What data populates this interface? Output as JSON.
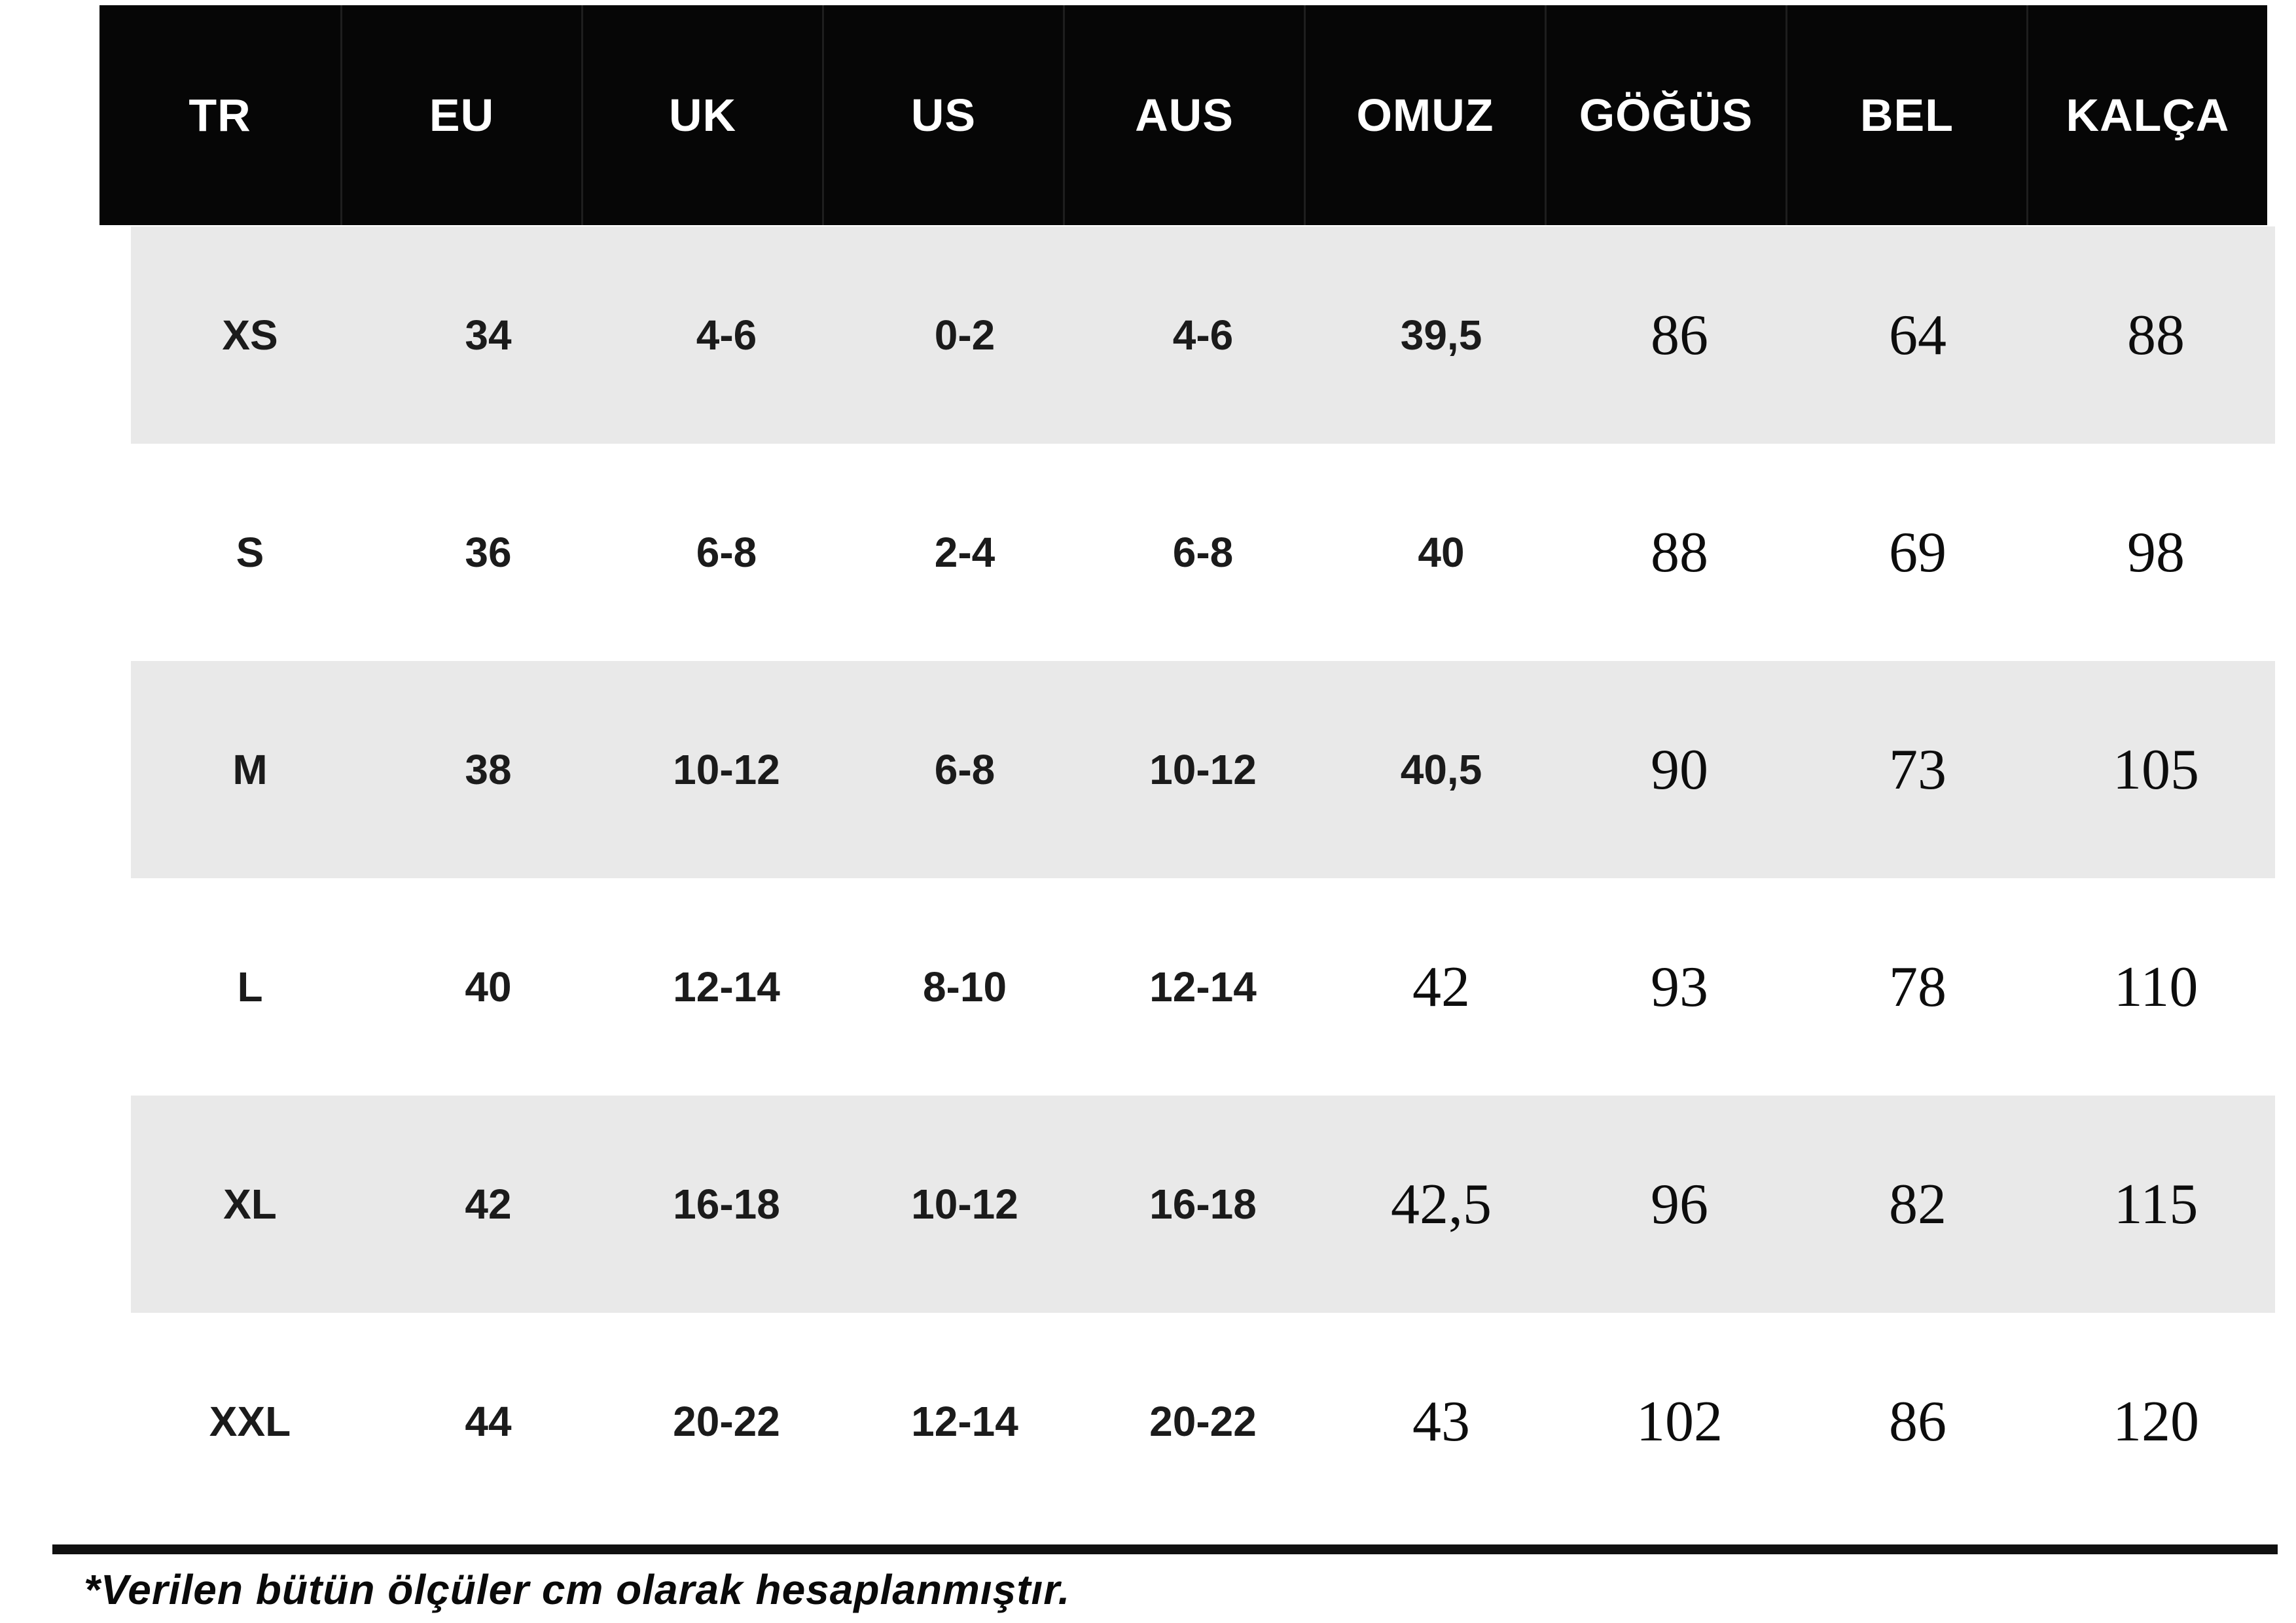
{
  "chart_data": {
    "type": "table",
    "columns": [
      "TR",
      "EU",
      "UK",
      "US",
      "AUS",
      "OMUZ",
      "GÖĞÜS",
      "BEL",
      "KALÇA"
    ],
    "rows": [
      [
        "XS",
        "34",
        "4-6",
        "0-2",
        "4-6",
        "39,5",
        "86",
        "64",
        "88"
      ],
      [
        "S",
        "36",
        "6-8",
        "2-4",
        "6-8",
        "40",
        "88",
        "69",
        "98"
      ],
      [
        "M",
        "38",
        "10-12",
        "6-8",
        "10-12",
        "40,5",
        "90",
        "73",
        "105"
      ],
      [
        "L",
        "40",
        "12-14",
        "8-10",
        "12-14",
        "42",
        "93",
        "78",
        "110"
      ],
      [
        "XL",
        "42",
        "16-18",
        "10-12",
        "16-18",
        "42,5",
        "96",
        "82",
        "115"
      ],
      [
        "XXL",
        "44",
        "20-22",
        "12-14",
        "20-22",
        "43",
        "102",
        "86",
        "120"
      ]
    ]
  },
  "footnote": "*Verilen bütün ölçüler cm olarak hesaplanmıştır.",
  "colors": {
    "header_bg": "#060606",
    "header_text": "#ffffff",
    "row_stripe": "#e9e9e9",
    "row_plain": "#ffffff",
    "cell_text": "#1b1b1b",
    "rule": "#101010"
  }
}
